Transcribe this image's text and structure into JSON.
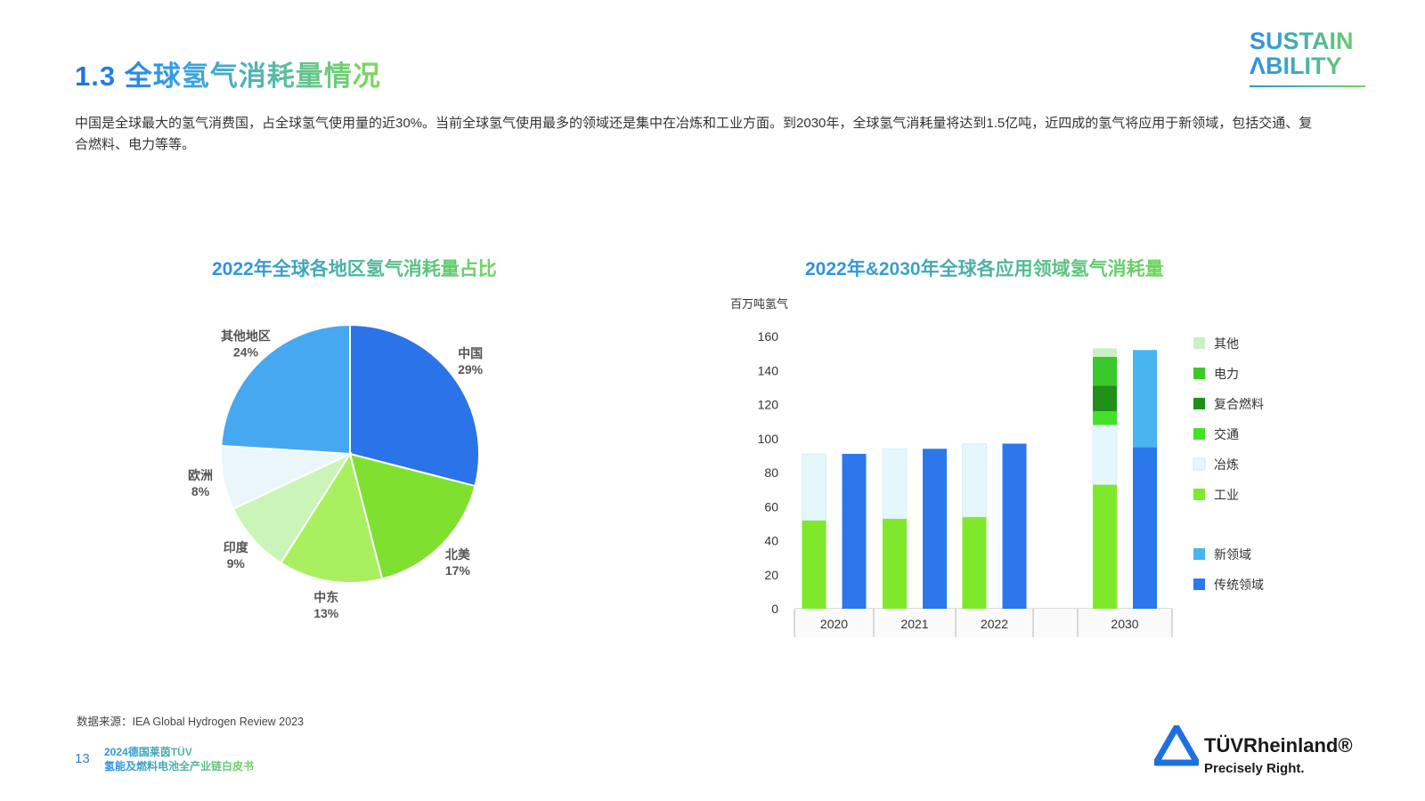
{
  "header": {
    "title": "1.3 全球氢气消耗量情况",
    "intro": "中国是全球最大的氢气消费国，占全球氢气使用量的近30%。当前全球氢气使用最多的领域还是集中在冶炼和工业方面。到2030年，全球氢气消耗量将达到1.5亿吨，近四成的氢气将应用于新领域，包括交通、复合燃料、电力等等。"
  },
  "logo": {
    "line1": "SUSTAIN",
    "line2": "ΛBILITY"
  },
  "chart_data": [
    {
      "type": "pie",
      "title": "2022年全球各地区氢气消耗量占比",
      "categories": [
        "中国",
        "北美",
        "中东",
        "印度",
        "欧洲",
        "其他地区"
      ],
      "values": [
        29,
        17,
        13,
        9,
        8,
        24
      ],
      "labels": [
        "29%",
        "17%",
        "13%",
        "9%",
        "8%",
        "24%"
      ],
      "colors": [
        "#2b73e8",
        "#7fe030",
        "#a8f060",
        "#cbf5b8",
        "#eaf6fa",
        "#46a8f0"
      ]
    },
    {
      "type": "bar",
      "title": "2022年&2030年全球各应用领域氢气消耗量",
      "ylabel": "百万吨氢气",
      "ylim": [
        0,
        160
      ],
      "yticks": [
        0,
        20,
        40,
        60,
        80,
        100,
        120,
        140,
        160
      ],
      "categories": [
        "2020",
        "2021",
        "2022",
        "2030"
      ],
      "stacked_by_sector": [
        {
          "name": "工业",
          "color": "#7ee82a",
          "values": [
            52,
            53,
            54,
            73
          ]
        },
        {
          "name": "冶炼",
          "color": "#e4f7fb",
          "values": [
            39,
            41,
            43,
            35
          ]
        },
        {
          "name": "交通",
          "color": "#44e02a",
          "values": [
            0,
            0,
            0,
            8
          ]
        },
        {
          "name": "复合燃料",
          "color": "#1f8f1a",
          "values": [
            0,
            0,
            0,
            15
          ]
        },
        {
          "name": "电力",
          "color": "#3bc82a",
          "values": [
            0,
            0,
            0,
            17
          ]
        },
        {
          "name": "其他",
          "color": "#c9f2c2",
          "values": [
            0,
            0,
            0,
            5
          ]
        }
      ],
      "stacked_by_type": [
        {
          "name": "传统领域",
          "color": "#2a78ec",
          "values": [
            91,
            94,
            97,
            95
          ]
        },
        {
          "name": "新领域",
          "color": "#48b4f0",
          "values": [
            0,
            0,
            0,
            57
          ]
        }
      ],
      "legend": [
        {
          "name": "其他",
          "color": "#c9f2c2"
        },
        {
          "name": "电力",
          "color": "#3bc82a"
        },
        {
          "name": "复合燃料",
          "color": "#1f8f1a"
        },
        {
          "name": "交通",
          "color": "#44e02a"
        },
        {
          "name": "冶炼",
          "color": "#e4f7fb"
        },
        {
          "name": "工业",
          "color": "#7ee82a"
        },
        {
          "name": "新领域",
          "color": "#48b4f0"
        },
        {
          "name": "传统领域",
          "color": "#2a78ec"
        }
      ]
    }
  ],
  "footer": {
    "source": "数据来源：IEA Global Hydrogen Review 2023",
    "page_number": "13",
    "report_line1": "2024德国莱茵TÜV",
    "report_line2": "氢能及燃料电池全产业链白皮书",
    "brand_name": "TÜVRheinland®",
    "brand_tagline": "Precisely Right."
  }
}
